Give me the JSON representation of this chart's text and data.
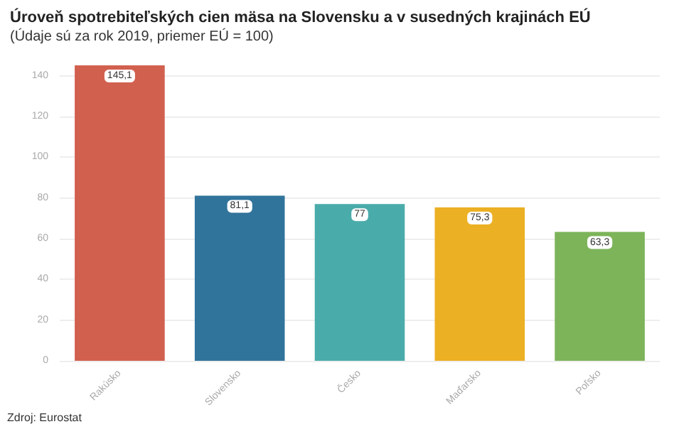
{
  "chart_data": {
    "type": "bar",
    "title": "Úroveň spotrebiteľských cien mäsa na Slovensku a v susedných krajinách EÚ",
    "subtitle": "(Údaje sú za rok 2019, priemer EÚ = 100)",
    "categories": [
      "Rakúsko",
      "Slovensko",
      "Česko",
      "Maďarsko",
      "Poľsko"
    ],
    "values": [
      145.1,
      81.1,
      77,
      75.3,
      63.3
    ],
    "value_labels": [
      "145,1",
      "81,1",
      "77",
      "75,3",
      "63,3"
    ],
    "colors": [
      "#d2604f",
      "#31749b",
      "#4aacaa",
      "#ecb024",
      "#7db45a"
    ],
    "ylim": [
      0,
      145.1
    ],
    "yticks": [
      0,
      20,
      40,
      60,
      80,
      100,
      120,
      140
    ],
    "grid": "y",
    "annotations": [
      "Zdroj: Eurostat"
    ]
  }
}
